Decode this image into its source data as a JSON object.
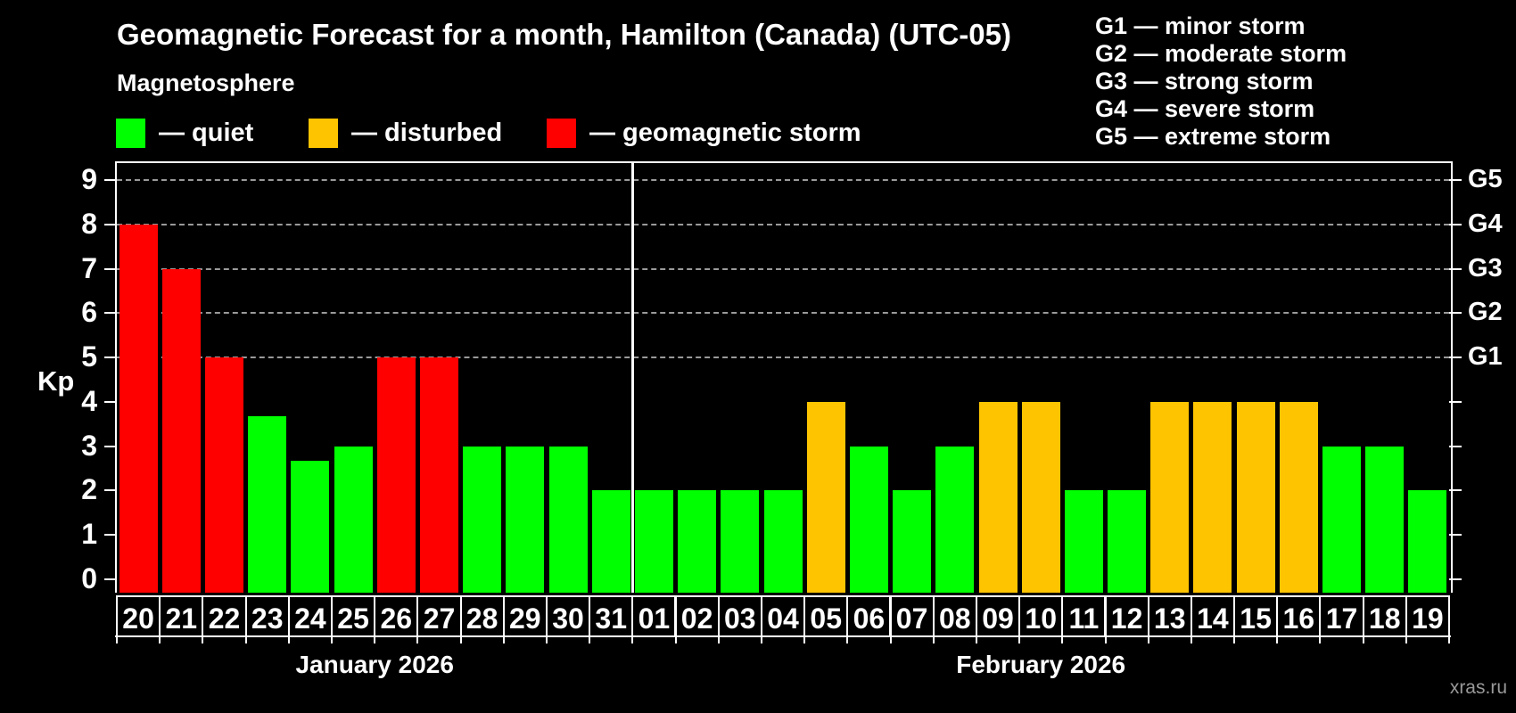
{
  "header": {
    "title": "Geomagnetic Forecast for a month, Hamilton (Canada) (UTC-05)",
    "subtitle": "Magnetosphere"
  },
  "legend": {
    "items": [
      {
        "name": "quiet",
        "label": "— quiet",
        "color": "#00ff00"
      },
      {
        "name": "disturbed",
        "label": "— disturbed",
        "color": "#ffc400"
      },
      {
        "name": "storm",
        "label": "— geomagnetic storm",
        "color": "#ff0000"
      }
    ]
  },
  "g_legend": {
    "items": [
      "G1 — minor storm",
      "G2 — moderate storm",
      "G3 — strong storm",
      "G4 — severe storm",
      "G5 — extreme storm"
    ]
  },
  "watermark": "xras.ru",
  "chart_data": {
    "type": "bar",
    "title": "Geomagnetic Forecast for a month, Hamilton (Canada) (UTC-05)",
    "ylabel": "Kp",
    "ylim": [
      0,
      9.4
    ],
    "y_ticks": [
      0,
      1,
      2,
      3,
      4,
      5,
      6,
      7,
      8,
      9
    ],
    "gridline_kp": [
      5,
      6,
      7,
      8,
      9
    ],
    "right_axis": [
      {
        "kp": 5,
        "label": "G1"
      },
      {
        "kp": 6,
        "label": "G2"
      },
      {
        "kp": 7,
        "label": "G3"
      },
      {
        "kp": 8,
        "label": "G4"
      },
      {
        "kp": 9,
        "label": "G5"
      }
    ],
    "status_colors": {
      "quiet": "#00ff00",
      "disturbed": "#ffc400",
      "storm": "#ff0000"
    },
    "legend_position": "top-left",
    "grid": "dashed horizontal at Kp 5-9",
    "groups": [
      {
        "label": "January 2026",
        "days": [
          "20",
          "21",
          "22",
          "23",
          "24",
          "25",
          "26",
          "27",
          "28",
          "29",
          "30",
          "31"
        ],
        "values": [
          8,
          7,
          5,
          3.67,
          2.67,
          3,
          5,
          5,
          3,
          3,
          3,
          2
        ],
        "statuses": [
          "storm",
          "storm",
          "storm",
          "quiet",
          "quiet",
          "quiet",
          "storm",
          "storm",
          "quiet",
          "quiet",
          "quiet",
          "quiet"
        ]
      },
      {
        "label": "February 2026",
        "days": [
          "01",
          "02",
          "03",
          "04",
          "05",
          "06",
          "07",
          "08",
          "09",
          "10",
          "11",
          "12",
          "13",
          "14",
          "15",
          "16",
          "17",
          "18",
          "19"
        ],
        "values": [
          2,
          2,
          2,
          2,
          4,
          3,
          2,
          3,
          4,
          4,
          2,
          2,
          4,
          4,
          4,
          4,
          3,
          3,
          2
        ],
        "statuses": [
          "quiet",
          "quiet",
          "quiet",
          "quiet",
          "disturbed",
          "quiet",
          "quiet",
          "quiet",
          "disturbed",
          "disturbed",
          "quiet",
          "quiet",
          "disturbed",
          "disturbed",
          "disturbed",
          "disturbed",
          "quiet",
          "quiet",
          "quiet"
        ]
      }
    ]
  }
}
